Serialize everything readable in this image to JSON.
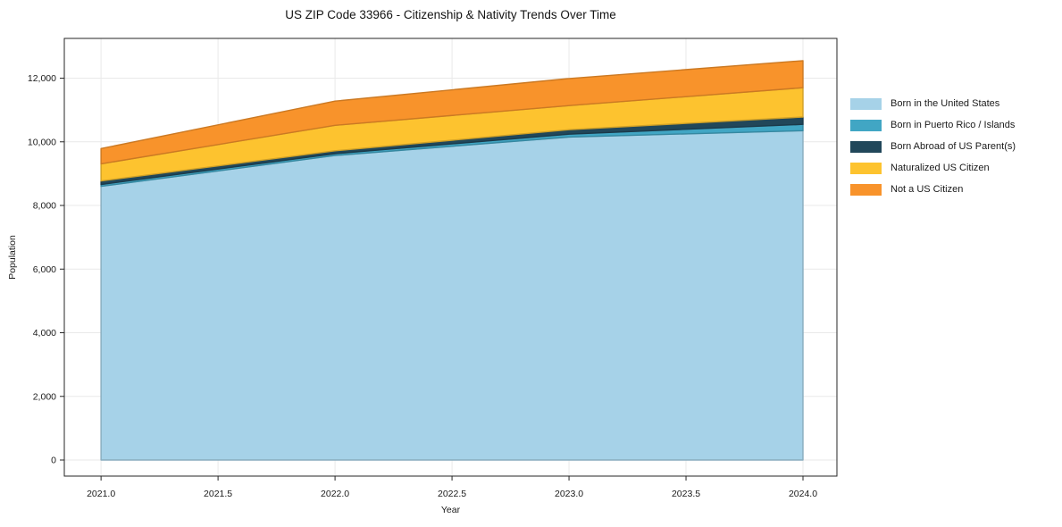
{
  "title": "US ZIP Code 33966 - Citizenship & Nativity Trends Over Time",
  "chart_data": {
    "type": "area",
    "stacked": true,
    "title": "US ZIP Code 33966 - Citizenship & Nativity Trends Over Time",
    "xlabel": "Year",
    "ylabel": "Population",
    "x": [
      2021,
      2022,
      2023,
      2024
    ],
    "series": [
      {
        "name": "Born in the United States",
        "color": "#A6D2E8",
        "values": [
          8600,
          9570,
          10150,
          10350
        ]
      },
      {
        "name": "Born in Puerto Rico / Islands",
        "color": "#41A6C4",
        "values": [
          60,
          60,
          90,
          200
        ]
      },
      {
        "name": "Born Abroad of US Parent(s)",
        "color": "#21475A",
        "values": [
          110,
          90,
          140,
          230
        ]
      },
      {
        "name": "Naturalized US Citizen",
        "color": "#FDC32F",
        "values": [
          540,
          800,
          760,
          920
        ]
      },
      {
        "name": "Not a US Citizen",
        "color": "#F8932B",
        "values": [
          480,
          760,
          850,
          850
        ]
      }
    ],
    "stack_totals": [
      9790,
      11280,
      11990,
      12550
    ],
    "x_ticks": [
      2021.0,
      2021.5,
      2022.0,
      2022.5,
      2023.0,
      2023.5,
      2024.0
    ],
    "x_tick_labels": [
      "2021.0",
      "2021.5",
      "2022.0",
      "2022.5",
      "2023.0",
      "2023.5",
      "2024.0"
    ],
    "y_ticks": [
      0,
      2000,
      4000,
      6000,
      8000,
      10000,
      12000
    ],
    "y_tick_labels": [
      "0",
      "2,000",
      "4,000",
      "6,000",
      "8,000",
      "10,000",
      "12,000"
    ],
    "xlim": [
      2020.843,
      2024.145
    ],
    "ylim": [
      -505,
      13250
    ],
    "grid": true,
    "grid_color": "#e9e9e9",
    "frame_color": "#262626",
    "background": "#ffffff",
    "legend_position": "right-outside"
  }
}
